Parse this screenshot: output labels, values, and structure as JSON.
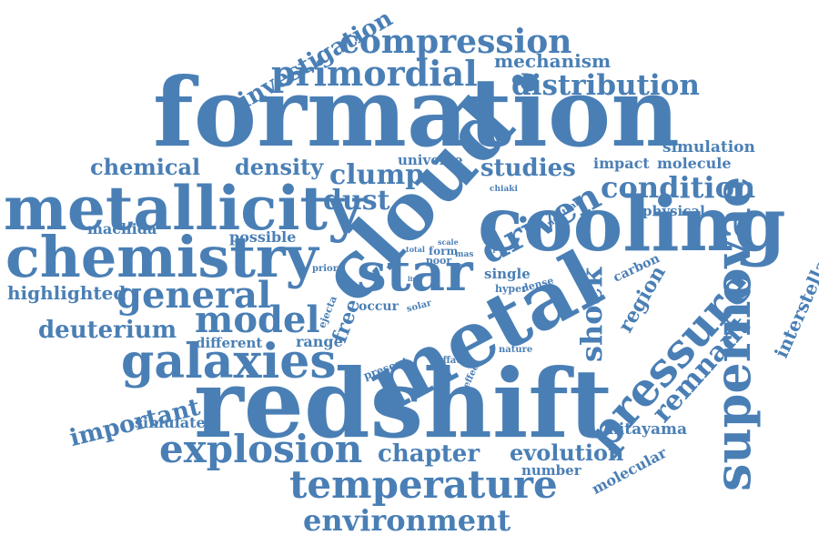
{
  "cloud": {
    "color": "#4a7fb5",
    "words": [
      "formation",
      "redshift",
      "metal",
      "cloud",
      "cooling",
      "star",
      "metallicity",
      "chemistry",
      "supernovae",
      "pressure",
      "galaxies",
      "explosion",
      "temperature",
      "environment",
      "compression",
      "primordial",
      "distribution",
      "mechanism",
      "investigation",
      "model",
      "general",
      "driven",
      "dust",
      "clump",
      "studies",
      "density",
      "chemical",
      "condition",
      "deuterium",
      "highlighted",
      "machida",
      "possible",
      "universe",
      "simulation",
      "molecule",
      "impact",
      "physical",
      "shock",
      "region",
      "remnant",
      "interstellar",
      "carbon",
      "chapter",
      "evolution",
      "important",
      "simulate",
      "kitayama",
      "molecular",
      "number",
      "different",
      "range",
      "free",
      "ejecta",
      "occur",
      "solar",
      "single",
      "hyper",
      "dense",
      "neutral",
      "chiaki",
      "total",
      "form",
      "mas",
      "poor",
      "prior",
      "line",
      "scale",
      "size",
      "type",
      "present",
      "caffau",
      "effect",
      "nature"
    ]
  }
}
